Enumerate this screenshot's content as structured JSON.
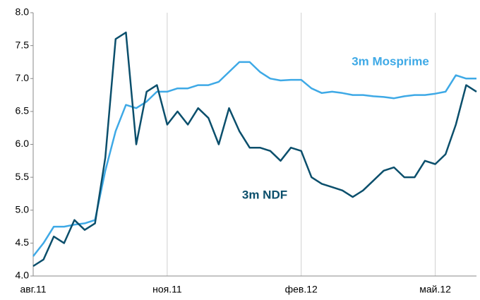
{
  "chart_data": {
    "type": "line",
    "categories": [
      "авг.11",
      null,
      null,
      null,
      null,
      null,
      null,
      null,
      null,
      null,
      null,
      null,
      null,
      "ноя.11",
      null,
      null,
      null,
      null,
      null,
      null,
      null,
      null,
      null,
      null,
      null,
      null,
      "фев.12",
      null,
      null,
      null,
      null,
      null,
      null,
      null,
      null,
      null,
      null,
      null,
      null,
      "май.12",
      null,
      null,
      null,
      null
    ],
    "series": [
      {
        "name": "3m Mosprime",
        "color": "#3ea9e6",
        "values": [
          4.3,
          4.5,
          4.75,
          4.75,
          4.78,
          4.8,
          4.85,
          5.6,
          6.2,
          6.6,
          6.55,
          6.65,
          6.8,
          6.8,
          6.85,
          6.85,
          6.9,
          6.9,
          6.95,
          7.1,
          7.25,
          7.25,
          7.1,
          7.0,
          6.97,
          6.98,
          6.98,
          6.85,
          6.78,
          6.8,
          6.78,
          6.75,
          6.75,
          6.73,
          6.72,
          6.7,
          6.73,
          6.75,
          6.75,
          6.77,
          6.8,
          7.05,
          7.0,
          7.0
        ]
      },
      {
        "name": "3m NDF",
        "color": "#0b4f6c",
        "values": [
          4.15,
          4.25,
          4.6,
          4.5,
          4.85,
          4.7,
          4.8,
          5.8,
          7.6,
          7.7,
          6.0,
          6.8,
          6.9,
          6.3,
          6.5,
          6.3,
          6.55,
          6.4,
          6.0,
          6.55,
          6.2,
          5.95,
          5.95,
          5.9,
          5.75,
          5.95,
          5.9,
          5.5,
          5.4,
          5.35,
          5.3,
          5.2,
          5.3,
          5.45,
          5.6,
          5.65,
          5.5,
          5.5,
          5.75,
          5.7,
          5.85,
          6.3,
          6.9,
          6.8
        ]
      }
    ],
    "ylim": [
      4.0,
      8.0
    ],
    "yticks": [
      {
        "value": 4,
        "label": "4.0"
      },
      4.5,
      {
        "value": 5,
        "label": "5.0"
      },
      5.5,
      {
        "value": 6,
        "label": "6.0"
      },
      6.5,
      {
        "value": 7,
        "label": "7.0"
      },
      7.5,
      {
        "value": 8,
        "label": "8.0"
      }
    ],
    "grid": true
  }
}
